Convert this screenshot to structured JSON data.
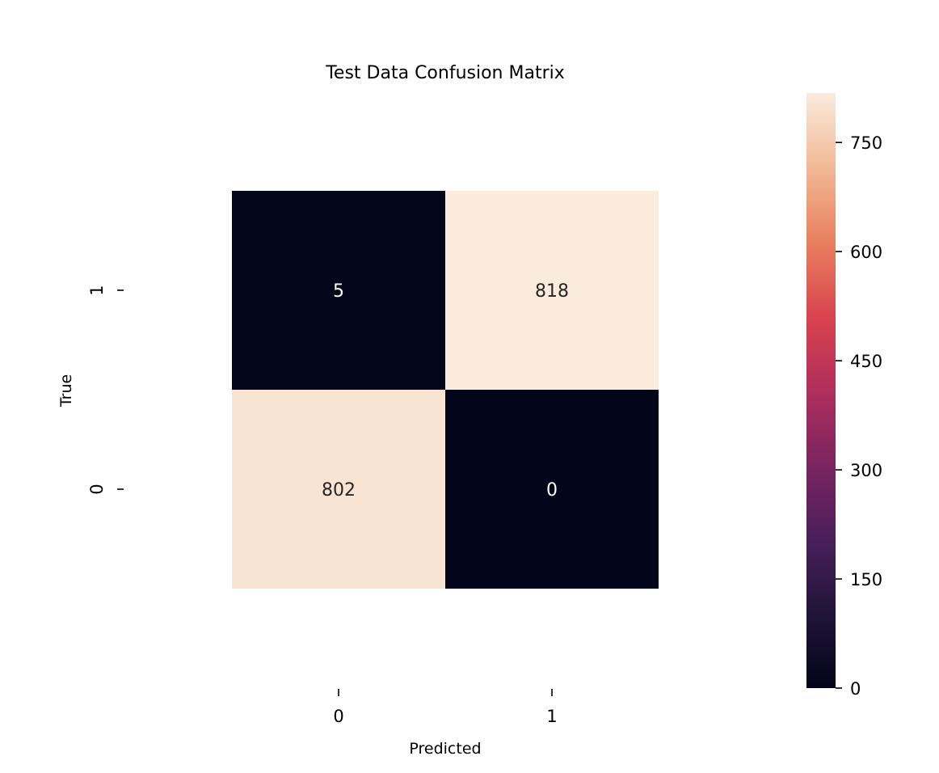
{
  "chart_data": {
    "type": "heatmap",
    "title": "Test Data Confusion Matrix",
    "xlabel": "Predicted",
    "ylabel": "True",
    "x_categories": [
      "0",
      "1"
    ],
    "y_categories": [
      "1",
      "0"
    ],
    "cells": [
      {
        "row": "1",
        "col": "0",
        "value": 5,
        "label": "5"
      },
      {
        "row": "1",
        "col": "1",
        "value": 818,
        "label": "818"
      },
      {
        "row": "0",
        "col": "0",
        "value": 802,
        "label": "802"
      },
      {
        "row": "0",
        "col": "1",
        "value": 0,
        "label": "0"
      }
    ],
    "colorbar": {
      "range": [
        0,
        818
      ],
      "ticks": [
        0,
        150,
        300,
        450,
        600,
        750
      ],
      "tick_labels": [
        "0",
        "150",
        "300",
        "450",
        "600",
        "750"
      ],
      "colormap": "rocket"
    },
    "grid": false
  }
}
